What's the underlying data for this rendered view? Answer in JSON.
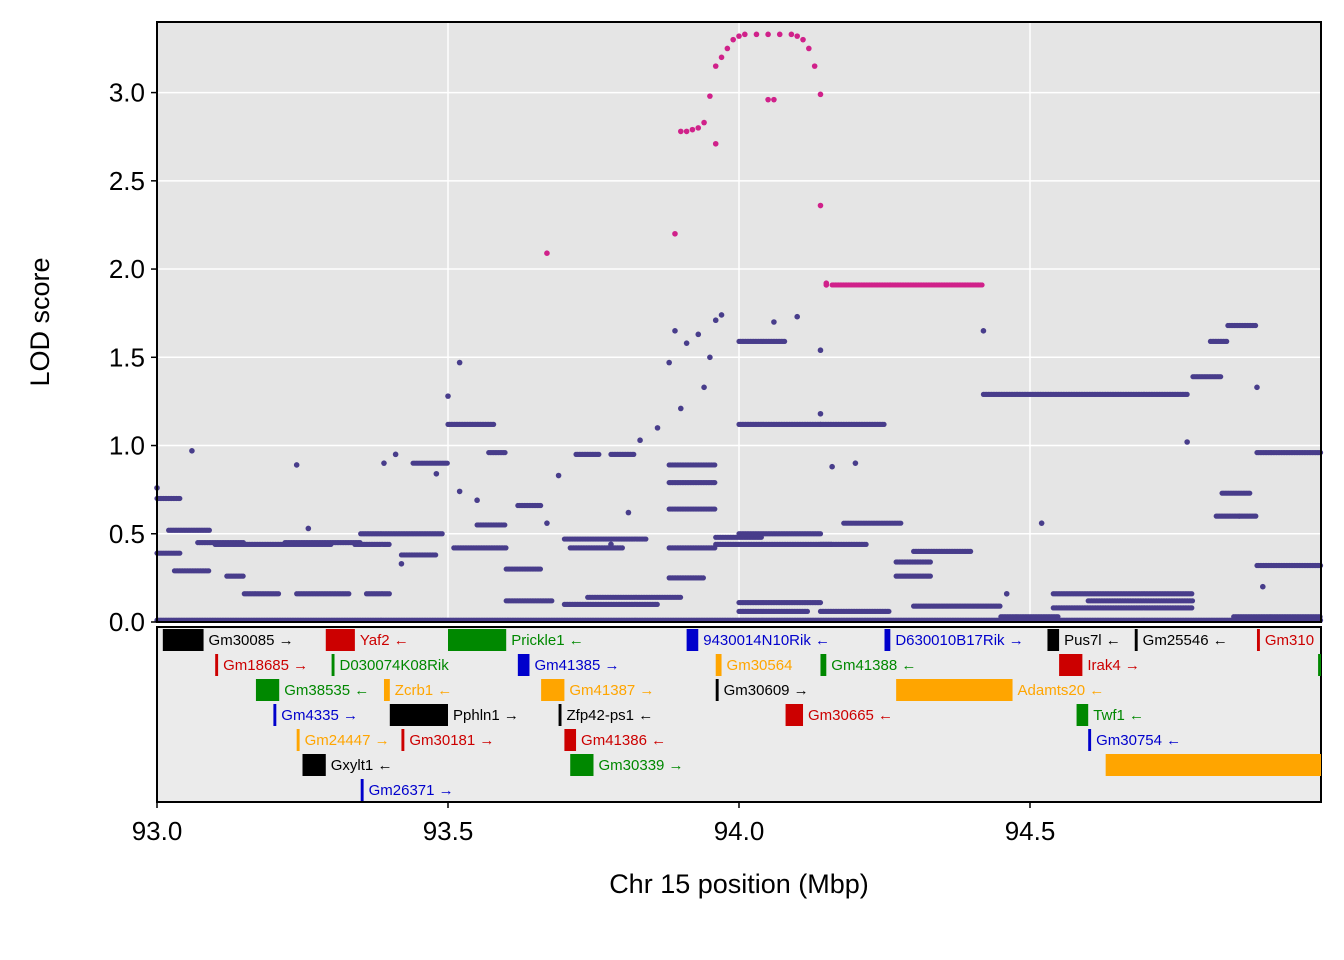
{
  "chart_data": {
    "type": "scatter",
    "xlabel": "Chr 15 position (Mbp)",
    "ylabel": "LOD score",
    "xlim": [
      93.0,
      95.0
    ],
    "ylim": [
      0.0,
      3.4
    ],
    "x_ticks": [
      "93.0",
      "93.5",
      "94.0",
      "94.5"
    ],
    "y_ticks": [
      "0.0",
      "0.5",
      "1.0",
      "1.5",
      "2.0",
      "2.5",
      "3.0"
    ],
    "grid": true,
    "colors": {
      "panel_bg": "#e5e5e5",
      "grid": "#ffffff",
      "points": "#483d8b",
      "highlight": "#d0218a"
    },
    "highlight_points": [
      [
        93.67,
        2.09
      ],
      [
        93.89,
        2.2
      ],
      [
        93.9,
        2.78
      ],
      [
        93.91,
        2.78
      ],
      [
        93.92,
        2.79
      ],
      [
        93.93,
        2.8
      ],
      [
        93.94,
        2.83
      ],
      [
        93.95,
        2.98
      ],
      [
        93.96,
        2.71
      ],
      [
        93.96,
        3.15
      ],
      [
        93.97,
        3.2
      ],
      [
        93.98,
        3.25
      ],
      [
        93.99,
        3.3
      ],
      [
        94.0,
        3.32
      ],
      [
        94.01,
        3.33
      ],
      [
        94.03,
        3.33
      ],
      [
        94.05,
        3.33
      ],
      [
        94.05,
        2.96
      ],
      [
        94.06,
        2.96
      ],
      [
        94.07,
        3.33
      ],
      [
        94.09,
        3.33
      ],
      [
        94.1,
        3.32
      ],
      [
        94.11,
        3.3
      ],
      [
        94.12,
        3.25
      ],
      [
        94.13,
        3.15
      ],
      [
        94.14,
        2.99
      ],
      [
        94.14,
        2.36
      ],
      [
        94.15,
        1.92
      ],
      [
        94.15,
        1.91
      ]
    ],
    "highlight_segments": [
      {
        "x0": 94.16,
        "x1": 94.42,
        "y": 1.91
      }
    ],
    "point_segments": [
      {
        "x0": 93.0,
        "x1": 93.04,
        "y": 0.7
      },
      {
        "x0": 93.0,
        "x1": 93.04,
        "y": 0.39
      },
      {
        "x0": 93.02,
        "x1": 93.09,
        "y": 0.52
      },
      {
        "x0": 93.03,
        "x1": 93.09,
        "y": 0.29
      },
      {
        "x0": 93.07,
        "x1": 93.15,
        "y": 0.45
      },
      {
        "x0": 93.1,
        "x1": 93.3,
        "y": 0.44
      },
      {
        "x0": 93.12,
        "x1": 93.15,
        "y": 0.26
      },
      {
        "x0": 93.15,
        "x1": 93.21,
        "y": 0.16
      },
      {
        "x0": 93.22,
        "x1": 93.35,
        "y": 0.45
      },
      {
        "x0": 93.24,
        "x1": 93.33,
        "y": 0.16
      },
      {
        "x0": 93.35,
        "x1": 93.49,
        "y": 0.5
      },
      {
        "x0": 93.34,
        "x1": 93.4,
        "y": 0.44
      },
      {
        "x0": 93.36,
        "x1": 93.4,
        "y": 0.16
      },
      {
        "x0": 93.42,
        "x1": 93.48,
        "y": 0.38
      },
      {
        "x0": 93.44,
        "x1": 93.5,
        "y": 0.9
      },
      {
        "x0": 93.5,
        "x1": 93.58,
        "y": 1.12
      },
      {
        "x0": 93.51,
        "x1": 93.6,
        "y": 0.42
      },
      {
        "x0": 93.55,
        "x1": 93.6,
        "y": 0.55
      },
      {
        "x0": 93.57,
        "x1": 93.6,
        "y": 0.96
      },
      {
        "x0": 93.6,
        "x1": 93.68,
        "y": 0.12
      },
      {
        "x0": 93.6,
        "x1": 93.66,
        "y": 0.3
      },
      {
        "x0": 93.62,
        "x1": 93.66,
        "y": 0.66
      },
      {
        "x0": 93.7,
        "x1": 93.84,
        "y": 0.47
      },
      {
        "x0": 93.71,
        "x1": 93.8,
        "y": 0.42
      },
      {
        "x0": 93.72,
        "x1": 93.76,
        "y": 0.95
      },
      {
        "x0": 93.78,
        "x1": 93.82,
        "y": 0.95
      },
      {
        "x0": 93.7,
        "x1": 93.86,
        "y": 0.1
      },
      {
        "x0": 93.74,
        "x1": 93.9,
        "y": 0.14
      },
      {
        "x0": 93.88,
        "x1": 93.94,
        "y": 0.25
      },
      {
        "x0": 93.88,
        "x1": 93.96,
        "y": 0.64
      },
      {
        "x0": 93.88,
        "x1": 93.96,
        "y": 0.79
      },
      {
        "x0": 93.88,
        "x1": 93.96,
        "y": 0.89
      },
      {
        "x0": 93.88,
        "x1": 93.96,
        "y": 0.42
      },
      {
        "x0": 93.96,
        "x1": 94.04,
        "y": 0.48
      },
      {
        "x0": 93.96,
        "x1": 94.16,
        "y": 0.44
      },
      {
        "x0": 94.0,
        "x1": 94.14,
        "y": 0.5
      },
      {
        "x0": 94.0,
        "x1": 94.14,
        "y": 1.12
      },
      {
        "x0": 94.0,
        "x1": 94.08,
        "y": 1.59
      },
      {
        "x0": 94.0,
        "x1": 94.14,
        "y": 0.11
      },
      {
        "x0": 94.0,
        "x1": 94.12,
        "y": 0.06
      },
      {
        "x0": 94.14,
        "x1": 94.25,
        "y": 1.12
      },
      {
        "x0": 94.14,
        "x1": 94.22,
        "y": 0.44
      },
      {
        "x0": 94.14,
        "x1": 94.26,
        "y": 0.06
      },
      {
        "x0": 94.18,
        "x1": 94.28,
        "y": 0.56
      },
      {
        "x0": 94.27,
        "x1": 94.33,
        "y": 0.34
      },
      {
        "x0": 94.27,
        "x1": 94.33,
        "y": 0.26
      },
      {
        "x0": 94.3,
        "x1": 94.4,
        "y": 0.4
      },
      {
        "x0": 94.3,
        "x1": 94.45,
        "y": 0.09
      },
      {
        "x0": 94.42,
        "x1": 94.77,
        "y": 1.29
      },
      {
        "x0": 94.45,
        "x1": 94.55,
        "y": 0.03
      },
      {
        "x0": 94.54,
        "x1": 94.78,
        "y": 0.16
      },
      {
        "x0": 94.54,
        "x1": 94.78,
        "y": 0.08
      },
      {
        "x0": 94.6,
        "x1": 94.78,
        "y": 0.12
      },
      {
        "x0": 94.78,
        "x1": 94.83,
        "y": 1.39
      },
      {
        "x0": 94.81,
        "x1": 94.84,
        "y": 1.59
      },
      {
        "x0": 94.84,
        "x1": 94.89,
        "y": 1.68
      },
      {
        "x0": 94.83,
        "x1": 94.88,
        "y": 0.73
      },
      {
        "x0": 94.82,
        "x1": 94.86,
        "y": 0.6
      },
      {
        "x0": 94.86,
        "x1": 94.89,
        "y": 0.6
      },
      {
        "x0": 94.89,
        "x1": 95.0,
        "y": 0.96
      },
      {
        "x0": 94.89,
        "x1": 95.0,
        "y": 0.32
      },
      {
        "x0": 94.85,
        "x1": 95.0,
        "y": 0.03
      },
      {
        "x0": 93.0,
        "x1": 95.0,
        "y": 0.01
      }
    ],
    "points": [
      [
        93.0,
        0.76
      ],
      [
        93.06,
        0.97
      ],
      [
        93.24,
        0.89
      ],
      [
        93.26,
        0.53
      ],
      [
        93.39,
        0.9
      ],
      [
        93.41,
        0.95
      ],
      [
        93.42,
        0.33
      ],
      [
        93.48,
        0.84
      ],
      [
        93.52,
        1.47
      ],
      [
        93.5,
        1.28
      ],
      [
        93.52,
        0.74
      ],
      [
        93.55,
        0.69
      ],
      [
        93.67,
        0.56
      ],
      [
        93.69,
        0.83
      ],
      [
        93.78,
        0.44
      ],
      [
        93.81,
        0.62
      ],
      [
        93.83,
        1.03
      ],
      [
        93.86,
        1.1
      ],
      [
        93.88,
        1.47
      ],
      [
        93.89,
        1.65
      ],
      [
        93.9,
        1.21
      ],
      [
        93.91,
        1.58
      ],
      [
        93.93,
        1.63
      ],
      [
        93.94,
        1.33
      ],
      [
        93.95,
        1.5
      ],
      [
        93.96,
        1.71
      ],
      [
        93.97,
        1.74
      ],
      [
        94.06,
        1.7
      ],
      [
        94.1,
        1.73
      ],
      [
        94.14,
        1.54
      ],
      [
        94.14,
        1.18
      ],
      [
        94.16,
        0.88
      ],
      [
        94.2,
        0.9
      ],
      [
        94.42,
        1.65
      ],
      [
        94.46,
        0.16
      ],
      [
        94.52,
        0.56
      ],
      [
        94.77,
        1.02
      ],
      [
        94.89,
        1.33
      ],
      [
        94.9,
        0.2
      ]
    ],
    "genes": [
      {
        "name": "Gm30085",
        "dir": "→",
        "start": 93.01,
        "end": 93.08,
        "row": 0,
        "color": "#000000"
      },
      {
        "name": "Yaf2",
        "dir": "←",
        "start": 93.29,
        "end": 93.34,
        "row": 0,
        "color": "#cc0000"
      },
      {
        "name": "Prickle1",
        "dir": "←",
        "start": 93.5,
        "end": 93.6,
        "row": 0,
        "color": "#008800"
      },
      {
        "name": "9430014N10Rik",
        "dir": "←",
        "start": 93.91,
        "end": 93.93,
        "row": 0,
        "color": "#0000cc"
      },
      {
        "name": "D630010B17Rik",
        "dir": "→",
        "start": 94.25,
        "end": 94.26,
        "row": 0,
        "color": "#0000cc"
      },
      {
        "name": "Pus7l",
        "dir": "←",
        "start": 94.53,
        "end": 94.55,
        "row": 0,
        "color": "#000000"
      },
      {
        "name": "Gm25546",
        "dir": "←",
        "start": 94.68,
        "end": 94.685,
        "row": 0,
        "color": "#000000"
      },
      {
        "name": "Gm310",
        "dir": "",
        "start": 94.89,
        "end": 94.895,
        "row": 0,
        "color": "#cc0000"
      },
      {
        "name": "Gm18685",
        "dir": "→",
        "start": 93.1,
        "end": 93.105,
        "row": 1,
        "color": "#cc0000"
      },
      {
        "name": "D030074K08Rik",
        "dir": "",
        "start": 93.3,
        "end": 93.305,
        "row": 1,
        "color": "#008800"
      },
      {
        "name": "Gm41385",
        "dir": "→",
        "start": 93.62,
        "end": 93.64,
        "row": 1,
        "color": "#0000cc"
      },
      {
        "name": "Gm30564",
        "dir": "",
        "start": 93.96,
        "end": 93.97,
        "row": 1,
        "color": "#ffa500"
      },
      {
        "name": "Gm41388",
        "dir": "←",
        "start": 94.14,
        "end": 94.15,
        "row": 1,
        "color": "#008800"
      },
      {
        "name": "Irak4",
        "dir": "→",
        "start": 94.55,
        "end": 94.59,
        "row": 1,
        "color": "#cc0000"
      },
      {
        "name": "",
        "dir": "",
        "start": 94.995,
        "end": 95.0,
        "row": 1,
        "color": "#008800"
      },
      {
        "name": "Gm38535",
        "dir": "←",
        "start": 93.17,
        "end": 93.21,
        "row": 2,
        "color": "#008800"
      },
      {
        "name": "Zcrb1",
        "dir": "←",
        "start": 93.39,
        "end": 93.4,
        "row": 2,
        "color": "#ffa500"
      },
      {
        "name": "Gm41387",
        "dir": "→",
        "start": 93.66,
        "end": 93.7,
        "row": 2,
        "color": "#ffa500"
      },
      {
        "name": "Gm30609",
        "dir": "→",
        "start": 93.96,
        "end": 93.965,
        "row": 2,
        "color": "#000000"
      },
      {
        "name": "Adamts20",
        "dir": "←",
        "start": 94.27,
        "end": 94.47,
        "row": 2,
        "color": "#ffa500"
      },
      {
        "name": "Gm4335",
        "dir": "→",
        "start": 93.2,
        "end": 93.205,
        "row": 3,
        "color": "#0000cc"
      },
      {
        "name": "Pphln1",
        "dir": "→",
        "start": 93.4,
        "end": 93.5,
        "row": 3,
        "color": "#000000"
      },
      {
        "name": "Zfp42-ps1",
        "dir": "←",
        "start": 93.69,
        "end": 93.695,
        "row": 3,
        "color": "#000000"
      },
      {
        "name": "Gm30665",
        "dir": "←",
        "start": 94.08,
        "end": 94.11,
        "row": 3,
        "color": "#cc0000"
      },
      {
        "name": "Twf1",
        "dir": "←",
        "start": 94.58,
        "end": 94.6,
        "row": 3,
        "color": "#008800"
      },
      {
        "name": "Gm24447",
        "dir": "→",
        "start": 93.24,
        "end": 93.245,
        "row": 4,
        "color": "#ffa500"
      },
      {
        "name": "Gm30181",
        "dir": "→",
        "start": 93.42,
        "end": 93.425,
        "row": 4,
        "color": "#cc0000"
      },
      {
        "name": "Gm41386",
        "dir": "←",
        "start": 93.7,
        "end": 93.72,
        "row": 4,
        "color": "#cc0000"
      },
      {
        "name": "Gm30754",
        "dir": "←",
        "start": 94.6,
        "end": 94.605,
        "row": 4,
        "color": "#0000cc"
      },
      {
        "name": "Gxylt1",
        "dir": "←",
        "start": 93.25,
        "end": 93.29,
        "row": 5,
        "color": "#000000"
      },
      {
        "name": "Gm30339",
        "dir": "→",
        "start": 93.71,
        "end": 93.75,
        "row": 5,
        "color": "#008800"
      },
      {
        "name": "",
        "dir": "",
        "start": 94.63,
        "end": 95.0,
        "row": 5,
        "color": "#ffa500"
      },
      {
        "name": "Gm26371",
        "dir": "→",
        "start": 93.35,
        "end": 93.355,
        "row": 6,
        "color": "#0000cc"
      }
    ]
  }
}
